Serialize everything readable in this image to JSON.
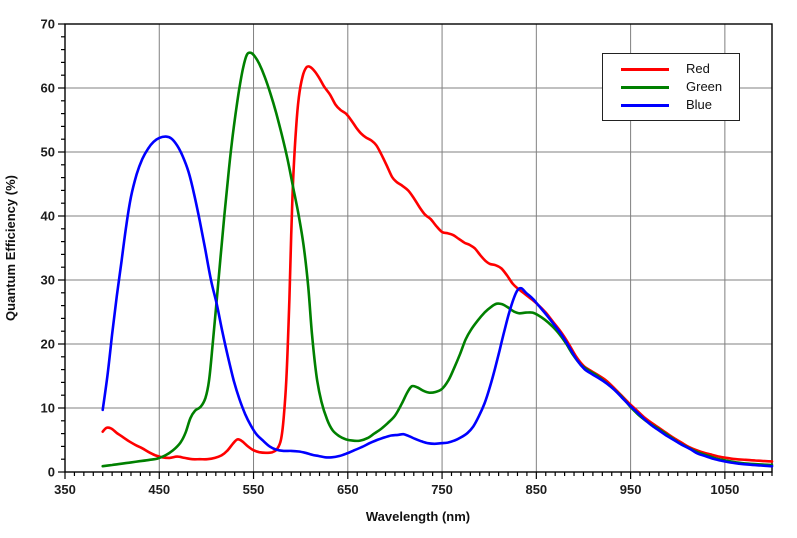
{
  "chart_data": {
    "type": "line",
    "title": "",
    "xlabel": "Wavelength (nm)",
    "ylabel": "Quantum Efficiency (%)",
    "xlim": [
      350,
      1100
    ],
    "ylim": [
      0,
      70
    ],
    "x_major_ticks": [
      350,
      450,
      550,
      650,
      750,
      850,
      950,
      1050
    ],
    "y_major_ticks": [
      0,
      10,
      20,
      30,
      40,
      50,
      60,
      70
    ],
    "x_minor_step": 10,
    "y_minor_step": 2,
    "grid": "major-both",
    "gridline_color": "#808080",
    "frame_color": "#000000",
    "background_color": "#ffffff",
    "legend": {
      "position": "top-right",
      "entries": [
        "Red",
        "Green",
        "Blue"
      ]
    },
    "series": [
      {
        "name": "Red",
        "color": "#ff0000",
        "points": [
          [
            390,
            6.3
          ],
          [
            394,
            6.9
          ],
          [
            399,
            6.8
          ],
          [
            405,
            6.1
          ],
          [
            411,
            5.5
          ],
          [
            418,
            4.8
          ],
          [
            425,
            4.2
          ],
          [
            432,
            3.7
          ],
          [
            439,
            3.1
          ],
          [
            446,
            2.6
          ],
          [
            453,
            2.3
          ],
          [
            461,
            2.2
          ],
          [
            469,
            2.4
          ],
          [
            477,
            2.2
          ],
          [
            485,
            2.0
          ],
          [
            493,
            2.0
          ],
          [
            501,
            2.0
          ],
          [
            509,
            2.2
          ],
          [
            516,
            2.6
          ],
          [
            522,
            3.3
          ],
          [
            528,
            4.4
          ],
          [
            533,
            5.1
          ],
          [
            538,
            4.8
          ],
          [
            544,
            4.0
          ],
          [
            550,
            3.4
          ],
          [
            556,
            3.1
          ],
          [
            563,
            3.0
          ],
          [
            570,
            3.1
          ],
          [
            575,
            3.6
          ],
          [
            579,
            5.0
          ],
          [
            582,
            8.5
          ],
          [
            585,
            15
          ],
          [
            588,
            27
          ],
          [
            590,
            37
          ],
          [
            592,
            45.5
          ],
          [
            595,
            53.5
          ],
          [
            598,
            58.5
          ],
          [
            602,
            61.8
          ],
          [
            606,
            63.2
          ],
          [
            610,
            63.3
          ],
          [
            615,
            62.6
          ],
          [
            620,
            61.5
          ],
          [
            625,
            60.2
          ],
          [
            631,
            59.0
          ],
          [
            637,
            57.4
          ],
          [
            642,
            56.6
          ],
          [
            648,
            56.0
          ],
          [
            653,
            55.1
          ],
          [
            659,
            53.8
          ],
          [
            664,
            52.9
          ],
          [
            669,
            52.3
          ],
          [
            675,
            51.8
          ],
          [
            680,
            51.1
          ],
          [
            685,
            49.8
          ],
          [
            691,
            48.0
          ],
          [
            697,
            46.1
          ],
          [
            702,
            45.3
          ],
          [
            708,
            44.7
          ],
          [
            714,
            44.0
          ],
          [
            720,
            42.8
          ],
          [
            726,
            41.4
          ],
          [
            732,
            40.2
          ],
          [
            738,
            39.5
          ],
          [
            744,
            38.4
          ],
          [
            750,
            37.5
          ],
          [
            756,
            37.3
          ],
          [
            762,
            37.0
          ],
          [
            768,
            36.4
          ],
          [
            774,
            35.8
          ],
          [
            779,
            35.5
          ],
          [
            785,
            34.9
          ],
          [
            791,
            33.8
          ],
          [
            796,
            33.0
          ],
          [
            801,
            32.5
          ],
          [
            807,
            32.3
          ],
          [
            813,
            31.8
          ],
          [
            819,
            30.7
          ],
          [
            825,
            29.4
          ],
          [
            831,
            28.6
          ],
          [
            838,
            27.8
          ],
          [
            845,
            27.0
          ],
          [
            852,
            26.1
          ],
          [
            860,
            24.9
          ],
          [
            868,
            23.4
          ],
          [
            876,
            21.9
          ],
          [
            884,
            20.1
          ],
          [
            892,
            18.1
          ],
          [
            900,
            16.6
          ],
          [
            908,
            15.8
          ],
          [
            916,
            15.1
          ],
          [
            924,
            14.3
          ],
          [
            932,
            13.2
          ],
          [
            940,
            12.0
          ],
          [
            948,
            10.8
          ],
          [
            956,
            9.7
          ],
          [
            964,
            8.6
          ],
          [
            972,
            7.7
          ],
          [
            980,
            6.9
          ],
          [
            988,
            6.1
          ],
          [
            996,
            5.3
          ],
          [
            1004,
            4.6
          ],
          [
            1012,
            3.9
          ],
          [
            1020,
            3.4
          ],
          [
            1028,
            3.0
          ],
          [
            1036,
            2.7
          ],
          [
            1044,
            2.4
          ],
          [
            1052,
            2.2
          ],
          [
            1062,
            2.0
          ],
          [
            1072,
            1.9
          ],
          [
            1082,
            1.8
          ],
          [
            1092,
            1.7
          ],
          [
            1100,
            1.65
          ]
        ]
      },
      {
        "name": "Green",
        "color": "#008000",
        "points": [
          [
            390,
            0.9
          ],
          [
            400,
            1.1
          ],
          [
            410,
            1.3
          ],
          [
            420,
            1.5
          ],
          [
            430,
            1.7
          ],
          [
            440,
            1.9
          ],
          [
            448,
            2.1
          ],
          [
            455,
            2.5
          ],
          [
            461,
            3.0
          ],
          [
            467,
            3.7
          ],
          [
            473,
            4.7
          ],
          [
            478,
            6.2
          ],
          [
            483,
            8.4
          ],
          [
            488,
            9.6
          ],
          [
            494,
            10.2
          ],
          [
            499,
            11.6
          ],
          [
            503,
            14.5
          ],
          [
            507,
            20.5
          ],
          [
            511,
            27
          ],
          [
            515,
            33.5
          ],
          [
            519,
            40
          ],
          [
            523,
            46
          ],
          [
            527,
            51.5
          ],
          [
            531,
            56
          ],
          [
            535,
            60
          ],
          [
            539,
            63.2
          ],
          [
            543,
            65.2
          ],
          [
            547,
            65.5
          ],
          [
            551,
            65.0
          ],
          [
            556,
            63.8
          ],
          [
            562,
            61.7
          ],
          [
            568,
            59.1
          ],
          [
            574,
            56.1
          ],
          [
            580,
            52.7
          ],
          [
            586,
            48.9
          ],
          [
            592,
            44.5
          ],
          [
            598,
            40.0
          ],
          [
            603,
            35.5
          ],
          [
            608,
            29.0
          ],
          [
            612,
            21.5
          ],
          [
            617,
            14.8
          ],
          [
            622,
            11.0
          ],
          [
            628,
            8.2
          ],
          [
            634,
            6.5
          ],
          [
            641,
            5.6
          ],
          [
            648,
            5.1
          ],
          [
            655,
            4.9
          ],
          [
            663,
            4.9
          ],
          [
            671,
            5.3
          ],
          [
            678,
            6.0
          ],
          [
            685,
            6.7
          ],
          [
            692,
            7.6
          ],
          [
            700,
            8.8
          ],
          [
            707,
            10.6
          ],
          [
            713,
            12.4
          ],
          [
            718,
            13.4
          ],
          [
            724,
            13.2
          ],
          [
            730,
            12.7
          ],
          [
            736,
            12.4
          ],
          [
            743,
            12.5
          ],
          [
            750,
            13.0
          ],
          [
            757,
            14.4
          ],
          [
            763,
            16.3
          ],
          [
            769,
            18.4
          ],
          [
            775,
            20.7
          ],
          [
            781,
            22.3
          ],
          [
            788,
            23.7
          ],
          [
            795,
            24.9
          ],
          [
            802,
            25.8
          ],
          [
            808,
            26.3
          ],
          [
            814,
            26.2
          ],
          [
            820,
            25.7
          ],
          [
            826,
            25.1
          ],
          [
            832,
            24.8
          ],
          [
            839,
            24.9
          ],
          [
            846,
            24.9
          ],
          [
            852,
            24.5
          ],
          [
            859,
            23.8
          ],
          [
            866,
            22.9
          ],
          [
            873,
            21.8
          ],
          [
            881,
            20.2
          ],
          [
            889,
            18.3
          ],
          [
            897,
            16.8
          ],
          [
            905,
            15.9
          ],
          [
            913,
            15.2
          ],
          [
            921,
            14.3
          ],
          [
            931,
            13.1
          ],
          [
            941,
            11.7
          ],
          [
            951,
            10.0
          ],
          [
            961,
            8.6
          ],
          [
            971,
            7.5
          ],
          [
            981,
            6.6
          ],
          [
            991,
            5.6
          ],
          [
            1001,
            4.6
          ],
          [
            1011,
            3.8
          ],
          [
            1021,
            3.1
          ],
          [
            1031,
            2.6
          ],
          [
            1041,
            2.1
          ],
          [
            1051,
            1.8
          ],
          [
            1062,
            1.5
          ],
          [
            1075,
            1.3
          ],
          [
            1090,
            1.15
          ],
          [
            1100,
            1.1
          ]
        ]
      },
      {
        "name": "Blue",
        "color": "#0000ff",
        "points": [
          [
            390,
            9.7
          ],
          [
            395,
            15
          ],
          [
            400,
            21.5
          ],
          [
            405,
            27.5
          ],
          [
            410,
            33
          ],
          [
            415,
            38.5
          ],
          [
            420,
            43
          ],
          [
            426,
            46.5
          ],
          [
            432,
            48.9
          ],
          [
            438,
            50.5
          ],
          [
            444,
            51.6
          ],
          [
            450,
            52.2
          ],
          [
            457,
            52.4
          ],
          [
            463,
            52.1
          ],
          [
            469,
            51.0
          ],
          [
            475,
            49.3
          ],
          [
            481,
            46.9
          ],
          [
            487,
            43.4
          ],
          [
            493,
            39.2
          ],
          [
            499,
            34.6
          ],
          [
            505,
            29.9
          ],
          [
            511,
            26.2
          ],
          [
            517,
            21.9
          ],
          [
            523,
            17.9
          ],
          [
            529,
            14.3
          ],
          [
            535,
            11.4
          ],
          [
            541,
            9.1
          ],
          [
            547,
            7.3
          ],
          [
            553,
            5.9
          ],
          [
            560,
            4.9
          ],
          [
            567,
            4.0
          ],
          [
            574,
            3.5
          ],
          [
            582,
            3.3
          ],
          [
            590,
            3.3
          ],
          [
            598,
            3.2
          ],
          [
            605,
            3.0
          ],
          [
            612,
            2.7
          ],
          [
            619,
            2.5
          ],
          [
            626,
            2.3
          ],
          [
            633,
            2.3
          ],
          [
            641,
            2.5
          ],
          [
            649,
            2.9
          ],
          [
            657,
            3.4
          ],
          [
            665,
            3.9
          ],
          [
            673,
            4.5
          ],
          [
            681,
            5.0
          ],
          [
            689,
            5.4
          ],
          [
            696,
            5.7
          ],
          [
            703,
            5.8
          ],
          [
            709,
            5.9
          ],
          [
            715,
            5.6
          ],
          [
            721,
            5.2
          ],
          [
            728,
            4.8
          ],
          [
            735,
            4.5
          ],
          [
            742,
            4.4
          ],
          [
            749,
            4.5
          ],
          [
            756,
            4.6
          ],
          [
            763,
            4.9
          ],
          [
            770,
            5.4
          ],
          [
            777,
            6.1
          ],
          [
            783,
            7.1
          ],
          [
            789,
            8.7
          ],
          [
            795,
            10.7
          ],
          [
            801,
            13.4
          ],
          [
            806,
            16.1
          ],
          [
            811,
            19.0
          ],
          [
            816,
            22.0
          ],
          [
            821,
            24.8
          ],
          [
            826,
            27.1
          ],
          [
            830,
            28.4
          ],
          [
            834,
            28.7
          ],
          [
            839,
            28.0
          ],
          [
            846,
            27.1
          ],
          [
            853,
            25.9
          ],
          [
            861,
            24.5
          ],
          [
            869,
            23.0
          ],
          [
            877,
            21.4
          ],
          [
            885,
            19.5
          ],
          [
            893,
            17.5
          ],
          [
            901,
            16.1
          ],
          [
            909,
            15.3
          ],
          [
            917,
            14.6
          ],
          [
            925,
            13.8
          ],
          [
            933,
            12.8
          ],
          [
            941,
            11.6
          ],
          [
            949,
            10.4
          ],
          [
            957,
            9.3
          ],
          [
            965,
            8.2
          ],
          [
            973,
            7.2
          ],
          [
            981,
            6.4
          ],
          [
            989,
            5.6
          ],
          [
            997,
            4.9
          ],
          [
            1005,
            4.2
          ],
          [
            1013,
            3.6
          ],
          [
            1021,
            2.9
          ],
          [
            1029,
            2.5
          ],
          [
            1037,
            2.1
          ],
          [
            1045,
            1.8
          ],
          [
            1055,
            1.5
          ],
          [
            1065,
            1.3
          ],
          [
            1075,
            1.15
          ],
          [
            1085,
            1.05
          ],
          [
            1095,
            0.95
          ],
          [
            1100,
            0.9
          ]
        ]
      }
    ]
  }
}
